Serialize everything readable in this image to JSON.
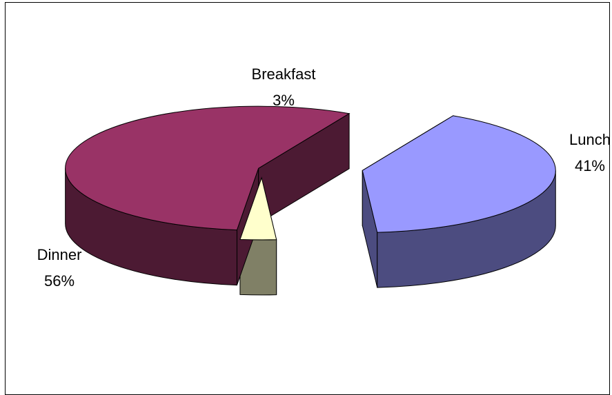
{
  "chart_data": {
    "type": "pie",
    "style": "3d-exploded",
    "title": "",
    "slices": [
      {
        "label": "Lunch",
        "value": 41,
        "value_label": "41%",
        "color": "#9999ff",
        "side_color": "#4c4c80"
      },
      {
        "label": "Breakfast",
        "value": 3,
        "value_label": "3%",
        "color": "#ffffcc",
        "side_color": "#808066"
      },
      {
        "label": "Dinner",
        "value": 56,
        "value_label": "56%",
        "color": "#993366",
        "side_color": "#4c1a33"
      }
    ],
    "legend": "none",
    "data_labels": "category-and-percent"
  }
}
